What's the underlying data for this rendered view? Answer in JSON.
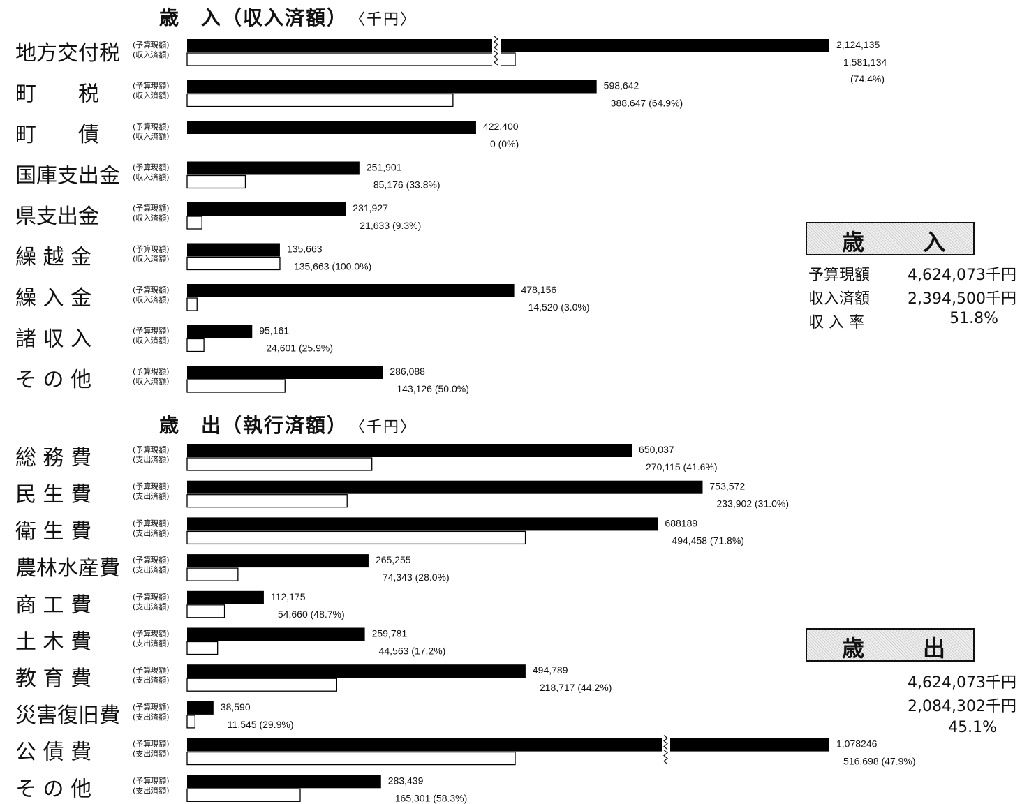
{
  "revenue_title": {
    "main": "歳　入（収入済額）",
    "unit": "〈千円〉"
  },
  "expenditure_title": {
    "main": "歳　出（執行済額）",
    "unit": "〈千円〉"
  },
  "tags": {
    "revenue": [
      "(予算現額)",
      "(収入済額)"
    ],
    "expenditure": [
      "(予算現額)",
      "(支出済額)"
    ]
  },
  "summary_revenue": {
    "head_left": "歳",
    "head_right": "入",
    "labels": [
      "予算現額",
      "収入済額",
      "収 入 率"
    ],
    "values": [
      "4,624,073千円",
      "2,394,500千円",
      "51.8%"
    ]
  },
  "summary_expenditure": {
    "head_left": "歳",
    "head_right": "出",
    "values": [
      "4,624,073千円",
      "2,084,302千円",
      "45.1%"
    ]
  },
  "chart_data": [
    {
      "type": "bar",
      "title": "歳　入（収入済額）",
      "unit": "千円",
      "series": [
        {
          "name": "予算現額"
        },
        {
          "name": "収入済額"
        }
      ],
      "rows": [
        {
          "label": "地方交付税",
          "budget": 2124135,
          "actual": 1581134,
          "budget_text": "2,124,135",
          "actual_text": "1,581,134",
          "rate_text": "(74.4%)",
          "broken": true
        },
        {
          "label": "町　　税",
          "budget": 598642,
          "actual": 388647,
          "budget_text": "598,642",
          "actual_text": "388,647 (64.9%)"
        },
        {
          "label": "町　　債",
          "budget": 422400,
          "actual": 0,
          "budget_text": "422,400",
          "actual_text": "0 (0%)"
        },
        {
          "label": "国庫支出金",
          "budget": 251901,
          "actual": 85176,
          "budget_text": "251,901",
          "actual_text": "85,176 (33.8%)"
        },
        {
          "label": "県支出金",
          "budget": 231927,
          "actual": 21633,
          "budget_text": "231,927",
          "actual_text": "21,633 (9.3%)"
        },
        {
          "label": "繰 越 金",
          "budget": 135663,
          "actual": 135663,
          "budget_text": "135,663",
          "actual_text": "135,663 (100.0%)"
        },
        {
          "label": "繰 入 金",
          "budget": 478156,
          "actual": 14520,
          "budget_text": "478,156",
          "actual_text": "14,520 (3.0%)"
        },
        {
          "label": "諸 収 入",
          "budget": 95161,
          "actual": 24601,
          "budget_text": "95,161",
          "actual_text": "24,601 (25.9%)"
        },
        {
          "label": "そ の 他",
          "budget": 286088,
          "actual": 143126,
          "budget_text": "286,088",
          "actual_text": "143,126 (50.0%)"
        }
      ]
    },
    {
      "type": "bar",
      "title": "歳　出（執行済額）",
      "unit": "千円",
      "series": [
        {
          "name": "予算現額"
        },
        {
          "name": "支出済額"
        }
      ],
      "rows": [
        {
          "label": "総 務 費",
          "budget": 650037,
          "actual": 270115,
          "budget_text": "650,037",
          "actual_text": "270,115 (41.6%)"
        },
        {
          "label": "民 生 費",
          "budget": 753572,
          "actual": 233902,
          "budget_text": "753,572",
          "actual_text": "233,902 (31.0%)"
        },
        {
          "label": "衛 生 費",
          "budget": 688189,
          "actual": 494458,
          "budget_text": "688189",
          "actual_text": "494,458 (71.8%)"
        },
        {
          "label": "農林水産費",
          "budget": 265255,
          "actual": 74343,
          "budget_text": "265,255",
          "actual_text": "74,343 (28.0%)"
        },
        {
          "label": "商 工 費",
          "budget": 112175,
          "actual": 54660,
          "budget_text": "112,175",
          "actual_text": "54,660 (48.7%)"
        },
        {
          "label": "土 木 費",
          "budget": 259781,
          "actual": 44563,
          "budget_text": "259,781",
          "actual_text": "44,563 (17.2%)"
        },
        {
          "label": "教 育 費",
          "budget": 494789,
          "actual": 218717,
          "budget_text": "494,789",
          "actual_text": "218,717 (44.2%)"
        },
        {
          "label": "災害復旧費",
          "budget": 38590,
          "actual": 11545,
          "budget_text": "38,590",
          "actual_text": "11,545 (29.9%)"
        },
        {
          "label": "公 債 費",
          "budget": 1078246,
          "actual": 516698,
          "budget_text": "1,078246",
          "actual_text": "516,698 (47.9%)",
          "broken": true
        },
        {
          "label": "そ の 他",
          "budget": 283439,
          "actual": 165301,
          "budget_text": "283,439",
          "actual_text": "165,301 (58.3%)"
        }
      ]
    }
  ]
}
